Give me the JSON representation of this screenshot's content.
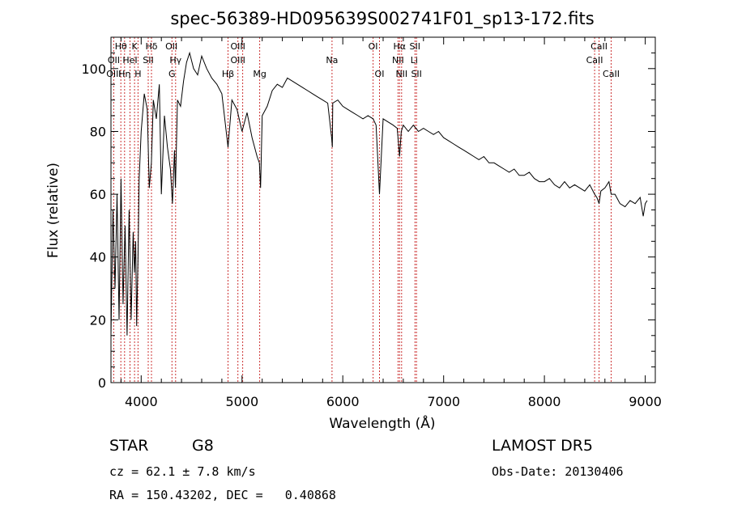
{
  "chart_data": {
    "type": "line",
    "title": "spec-56389-HD095639S002741F01_sp13-172.fits",
    "xlabel": "Wavelength (Å)",
    "ylabel": "Flux (relative)",
    "xlim": [
      3700,
      9100
    ],
    "ylim": [
      0,
      110
    ],
    "x_ticks": [
      4000,
      5000,
      6000,
      7000,
      8000,
      9000
    ],
    "y_ticks": [
      0,
      20,
      40,
      60,
      80,
      100
    ],
    "grid": false,
    "spectrum": {
      "name": "Flux",
      "color": "#000000",
      "x": [
        3700,
        3720,
        3740,
        3760,
        3780,
        3800,
        3820,
        3840,
        3860,
        3880,
        3900,
        3920,
        3933,
        3945,
        3955,
        3968,
        3980,
        4000,
        4030,
        4060,
        4080,
        4101,
        4120,
        4150,
        4180,
        4200,
        4230,
        4260,
        4290,
        4310,
        4330,
        4340,
        4360,
        4390,
        4420,
        4450,
        4480,
        4520,
        4560,
        4600,
        4650,
        4700,
        4750,
        4800,
        4861,
        4900,
        4950,
        5000,
        5050,
        5100,
        5150,
        5172,
        5184,
        5200,
        5250,
        5300,
        5350,
        5400,
        5450,
        5500,
        5550,
        5600,
        5650,
        5700,
        5750,
        5800,
        5850,
        5889,
        5896,
        5900,
        5950,
        6000,
        6050,
        6100,
        6150,
        6200,
        6250,
        6300,
        6330,
        6364,
        6400,
        6450,
        6500,
        6540,
        6563,
        6580,
        6600,
        6650,
        6700,
        6750,
        6800,
        6850,
        6900,
        6950,
        7000,
        7050,
        7100,
        7150,
        7200,
        7250,
        7300,
        7350,
        7400,
        7450,
        7500,
        7550,
        7600,
        7650,
        7700,
        7750,
        7800,
        7850,
        7900,
        7950,
        8000,
        8050,
        8100,
        8150,
        8200,
        8250,
        8300,
        8350,
        8400,
        8450,
        8498,
        8520,
        8542,
        8560,
        8600,
        8640,
        8662,
        8700,
        8750,
        8800,
        8850,
        8900,
        8950,
        8980,
        9000,
        9020
      ],
      "y": [
        15,
        55,
        30,
        60,
        20,
        65,
        25,
        50,
        15,
        55,
        20,
        48,
        35,
        45,
        18,
        40,
        65,
        80,
        92,
        87,
        62,
        70,
        90,
        84,
        95,
        60,
        85,
        75,
        68,
        57,
        74,
        62,
        90,
        88,
        96,
        102,
        105,
        100,
        98,
        104,
        100,
        97,
        95,
        92,
        75,
        90,
        87,
        80,
        86,
        78,
        72,
        70,
        62,
        85,
        88,
        93,
        95,
        94,
        97,
        96,
        95,
        94,
        93,
        92,
        91,
        90,
        89,
        78,
        75,
        89,
        90,
        88,
        87,
        86,
        85,
        84,
        85,
        84,
        82,
        60,
        84,
        83,
        82,
        81,
        72,
        80,
        82,
        80,
        82,
        80,
        81,
        80,
        79,
        80,
        78,
        77,
        76,
        75,
        74,
        73,
        72,
        71,
        72,
        70,
        70,
        69,
        68,
        67,
        68,
        66,
        66,
        67,
        65,
        64,
        64,
        65,
        63,
        62,
        64,
        62,
        63,
        62,
        61,
        63,
        60,
        59,
        57,
        61,
        62,
        64,
        60,
        60,
        57,
        56,
        58,
        57,
        59,
        53,
        57,
        58
      ],
      "note": ""
    },
    "line_markers": [
      {
        "label": "Hθ",
        "x": 3798,
        "row": 0
      },
      {
        "label": "K",
        "x": 3934,
        "row": 0
      },
      {
        "label": "Hδ",
        "x": 4102,
        "row": 0
      },
      {
        "label": "OII",
        "x": 4300,
        "row": 0
      },
      {
        "label": "OIII",
        "x": 4959,
        "row": 0
      },
      {
        "label": "OI",
        "x": 6300,
        "row": 0
      },
      {
        "label": "Hα",
        "x": 6563,
        "row": 0
      },
      {
        "label": "SII",
        "x": 6716,
        "row": 0
      },
      {
        "label": "CaII",
        "x": 8542,
        "row": 0
      },
      {
        "label": "OII",
        "x": 3727,
        "row": 1
      },
      {
        "label": "HeI",
        "x": 3889,
        "row": 1
      },
      {
        "label": "SII",
        "x": 4070,
        "row": 1
      },
      {
        "label": "Hγ",
        "x": 4341,
        "row": 1
      },
      {
        "label": "OIII",
        "x": 4959,
        "row": 1
      },
      {
        "label": "Na",
        "x": 5893,
        "row": 1
      },
      {
        "label": "NII",
        "x": 6548,
        "row": 1
      },
      {
        "label": "Li",
        "x": 6708,
        "row": 1
      },
      {
        "label": "CaII",
        "x": 8498,
        "row": 1
      },
      {
        "label": "OIII",
        "x": 3727,
        "row": 2
      },
      {
        "label": "Hη",
        "x": 3835,
        "row": 2
      },
      {
        "label": "H",
        "x": 3968,
        "row": 2
      },
      {
        "label": "G",
        "x": 4305,
        "row": 2
      },
      {
        "label": "Hβ",
        "x": 4861,
        "row": 2
      },
      {
        "label": "Mg",
        "x": 5175,
        "row": 2
      },
      {
        "label": "OI",
        "x": 6364,
        "row": 2
      },
      {
        "label": "NII",
        "x": 6583,
        "row": 2
      },
      {
        "label": "SII",
        "x": 6731,
        "row": 2
      },
      {
        "label": "CaII",
        "x": 8662,
        "row": 2
      }
    ],
    "marker_lines_x": [
      3727,
      3798,
      3835,
      3889,
      3934,
      3968,
      4070,
      4102,
      4305,
      4341,
      4861,
      4959,
      5007,
      5175,
      5893,
      6300,
      6364,
      6548,
      6563,
      6583,
      6716,
      6731,
      8498,
      8542,
      8662
    ],
    "marker_color": "#cc3333"
  },
  "info": {
    "object_type": "STAR",
    "subclass": "G8",
    "survey": "LAMOST DR5",
    "cz": "cz = 62.1 ± 7.8 km/s",
    "obs_date": "Obs-Date: 20130406",
    "coords": "RA = 150.43202, DEC =   0.40868"
  }
}
